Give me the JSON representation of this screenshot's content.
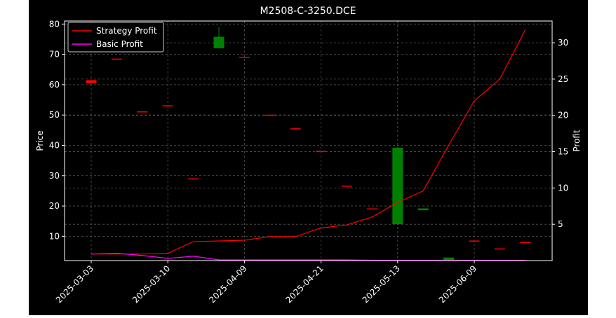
{
  "chart_data": {
    "type": "candlestick",
    "title": "M2508-C-3250.DCE",
    "xlabel": "",
    "ylabel": "Price",
    "y2label": "Profit",
    "ylim": [
      2,
      81
    ],
    "y2lim": [
      0,
      33
    ],
    "yticks": [
      10,
      20,
      30,
      40,
      50,
      60,
      70,
      80
    ],
    "y2ticks": [
      5,
      10,
      15,
      20,
      25,
      30
    ],
    "xticks": [
      "2025-03-03",
      "2025-03-10",
      "2025-04-09",
      "2025-04-21",
      "2025-05-13",
      "2025-06-09"
    ],
    "grid": true,
    "legend_position": "top-left",
    "colors": {
      "background": "#000000",
      "up": "#008000",
      "down": "#ff0000",
      "strategy": "#ff0000",
      "basic": "#ff00ff",
      "grid": "#555555"
    },
    "candles": [
      {
        "open": 61.5,
        "close": 60.5,
        "high": 61.5,
        "low": 60.5
      },
      {
        "open": 68.6,
        "close": 68.3,
        "high": 68.6,
        "low": 68.3
      },
      {
        "open": 51.2,
        "close": 50.9,
        "high": 51.2,
        "low": 50.9
      },
      {
        "open": 53.2,
        "close": 52.9,
        "high": 53.2,
        "low": 52.9
      },
      {
        "open": 29.1,
        "close": 28.8,
        "high": 29.1,
        "low": 28.8
      },
      {
        "open": 72.0,
        "close": 75.8,
        "high": 79.0,
        "low": 72.0
      },
      {
        "open": 69.2,
        "close": 68.9,
        "high": 69.2,
        "low": 68.9
      },
      {
        "open": 50.1,
        "close": 49.8,
        "high": 50.1,
        "low": 49.8
      },
      {
        "open": 45.6,
        "close": 45.3,
        "high": 45.6,
        "low": 45.3
      },
      {
        "open": 38.2,
        "close": 37.9,
        "high": 38.2,
        "low": 37.9
      },
      {
        "open": 26.7,
        "close": 26.4,
        "high": 26.7,
        "low": 26.4
      },
      {
        "open": 19.2,
        "close": 18.9,
        "high": 19.2,
        "low": 18.9
      },
      {
        "open": 14.0,
        "close": 39.2,
        "high": 39.2,
        "low": 14.0
      },
      {
        "open": 18.6,
        "close": 19.2,
        "high": 19.2,
        "low": 18.6
      },
      {
        "open": 2.2,
        "close": 3.0,
        "high": 3.0,
        "low": 2.2
      },
      {
        "open": 8.6,
        "close": 8.3,
        "high": 8.6,
        "low": 8.3
      },
      {
        "open": 6.0,
        "close": 5.7,
        "high": 6.0,
        "low": 5.7
      },
      {
        "open": 8.1,
        "close": 7.8,
        "high": 8.1,
        "low": 7.8
      }
    ],
    "series": [
      {
        "name": "Strategy Profit",
        "axis": "right",
        "values": [
          0.9,
          0.9,
          0.9,
          1.0,
          2.6,
          2.7,
          2.8,
          3.3,
          3.3,
          4.5,
          4.9,
          6.0,
          8.0,
          9.6,
          15.9,
          22.0,
          25.0,
          31.8
        ]
      },
      {
        "name": "Basic Profit",
        "axis": "right",
        "values": [
          0.9,
          1.0,
          0.7,
          0.3,
          0.6,
          0.1,
          0.1,
          0.1,
          0.1,
          0.1,
          0.1,
          0.05,
          0.05,
          0.05,
          0.05,
          0.05,
          0.05,
          0.05
        ]
      }
    ]
  }
}
